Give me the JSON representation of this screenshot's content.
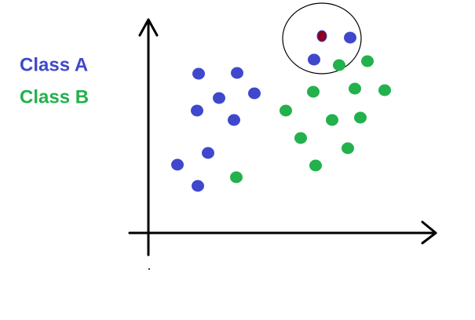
{
  "legend": {
    "items": [
      {
        "label": "Class A"
      },
      {
        "label": "Class B"
      }
    ]
  }
}
